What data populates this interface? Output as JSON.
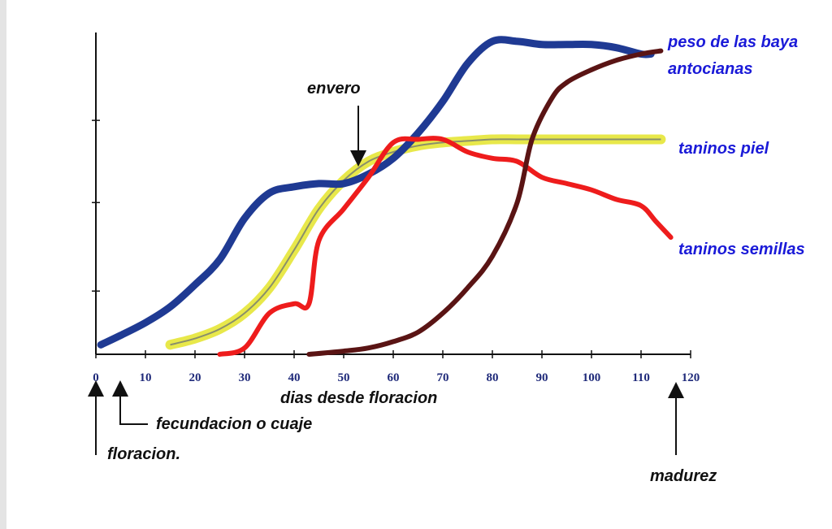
{
  "chart_data": {
    "type": "line",
    "title": "",
    "xlabel": "dias desde floracion",
    "ylabel": "",
    "xlim": [
      0,
      120
    ],
    "ylim": [
      0,
      100
    ],
    "x_ticks": [
      "0",
      "10",
      "20",
      "30",
      "40",
      "50",
      "60",
      "70",
      "80",
      "90",
      "100",
      "110",
      "120"
    ],
    "grid": false,
    "series": [
      {
        "name": "peso de las baya",
        "color": "#1f3a93",
        "points": [
          [
            1,
            3
          ],
          [
            5,
            6
          ],
          [
            10,
            10
          ],
          [
            15,
            15
          ],
          [
            20,
            22
          ],
          [
            25,
            30
          ],
          [
            30,
            43
          ],
          [
            35,
            51
          ],
          [
            40,
            53
          ],
          [
            45,
            54
          ],
          [
            50,
            54
          ],
          [
            55,
            57
          ],
          [
            60,
            62
          ],
          [
            65,
            70
          ],
          [
            70,
            80
          ],
          [
            75,
            92
          ],
          [
            80,
            99
          ],
          [
            85,
            99
          ],
          [
            90,
            98
          ],
          [
            95,
            98
          ],
          [
            100,
            98
          ],
          [
            105,
            97
          ],
          [
            110,
            95
          ],
          [
            112,
            95
          ]
        ]
      },
      {
        "name": "antocianas",
        "color": "#5a1414",
        "points": [
          [
            43,
            0
          ],
          [
            50,
            1
          ],
          [
            55,
            2
          ],
          [
            60,
            4
          ],
          [
            65,
            7
          ],
          [
            70,
            13
          ],
          [
            75,
            21
          ],
          [
            80,
            31
          ],
          [
            85,
            48
          ],
          [
            88,
            68
          ],
          [
            92,
            81
          ],
          [
            95,
            86
          ],
          [
            100,
            90
          ],
          [
            105,
            93
          ],
          [
            110,
            95
          ],
          [
            114,
            96
          ]
        ]
      },
      {
        "name": "taninos piel",
        "color": "#e8e84a",
        "points": [
          [
            15,
            3
          ],
          [
            20,
            5
          ],
          [
            25,
            8
          ],
          [
            30,
            13
          ],
          [
            35,
            21
          ],
          [
            40,
            33
          ],
          [
            45,
            46
          ],
          [
            50,
            55
          ],
          [
            55,
            61
          ],
          [
            60,
            64
          ],
          [
            65,
            66
          ],
          [
            70,
            67
          ],
          [
            75,
            67.5
          ],
          [
            80,
            68
          ],
          [
            85,
            68
          ],
          [
            90,
            68
          ],
          [
            95,
            68
          ],
          [
            100,
            68
          ],
          [
            105,
            68
          ],
          [
            110,
            68
          ],
          [
            114,
            68
          ]
        ]
      },
      {
        "name": "taninos semillas",
        "color": "#ee1c1c",
        "points": [
          [
            25,
            0
          ],
          [
            30,
            2
          ],
          [
            35,
            13
          ],
          [
            40,
            16
          ],
          [
            43,
            16
          ],
          [
            45,
            36
          ],
          [
            50,
            46
          ],
          [
            55,
            56
          ],
          [
            60,
            67
          ],
          [
            65,
            68
          ],
          [
            70,
            68
          ],
          [
            75,
            64
          ],
          [
            80,
            62
          ],
          [
            85,
            61
          ],
          [
            90,
            56
          ],
          [
            95,
            54
          ],
          [
            100,
            52
          ],
          [
            105,
            49
          ],
          [
            110,
            47
          ],
          [
            113,
            42
          ],
          [
            116,
            37
          ]
        ]
      }
    ],
    "annotations": [
      "envero",
      "fecundacion o cuaje",
      "floracion.",
      "madurez"
    ]
  }
}
